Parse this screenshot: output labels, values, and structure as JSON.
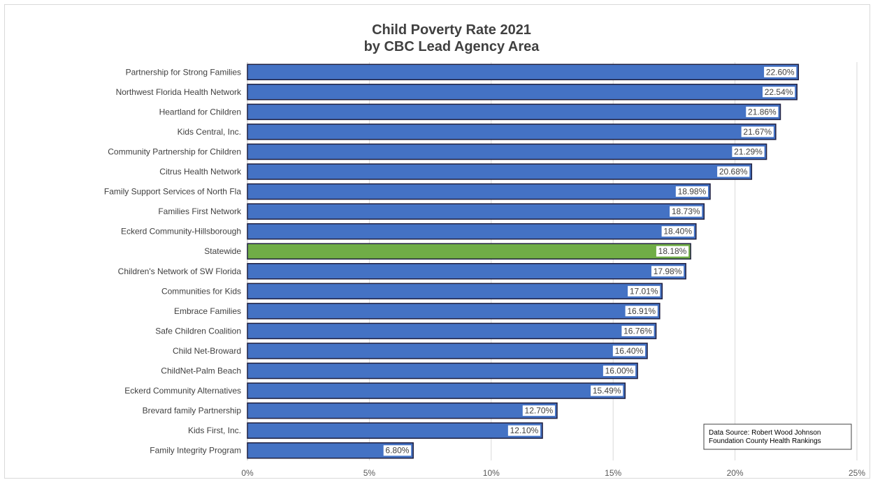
{
  "chart_data": {
    "type": "bar",
    "orientation": "horizontal",
    "title_lines": [
      "Child Poverty Rate 2021",
      "by CBC Lead Agency Area"
    ],
    "categories": [
      "Partnership for Strong Families",
      "Northwest Florida Health Network",
      "Heartland for Children",
      "Kids Central, Inc.",
      "Community Partnership for Children",
      "Citrus Health Network",
      "Family Support Services of North Fla",
      "Families First Network",
      "Eckerd Community-Hillsborough",
      "Statewide",
      "Children's Network of SW Florida",
      "Communities for Kids",
      "Embrace Families",
      "Safe Children Coalition",
      "Child Net-Broward",
      "ChildNet-Palm Beach",
      "Eckerd Community Alternatives",
      "Brevard family Partnership",
      "Kids First, Inc.",
      "Family Integrity Program"
    ],
    "values": [
      22.6,
      22.54,
      21.86,
      21.67,
      21.29,
      20.68,
      18.98,
      18.73,
      18.4,
      18.18,
      17.98,
      17.01,
      16.91,
      16.76,
      16.4,
      16.0,
      15.49,
      12.7,
      12.1,
      6.8
    ],
    "data_labels": [
      "22.60%",
      "22.54%",
      "21.86%",
      "21.67%",
      "21.29%",
      "20.68%",
      "18.98%",
      "18.73%",
      "18.40%",
      "18.18%",
      "17.98%",
      "17.01%",
      "16.91%",
      "16.76%",
      "16.40%",
      "16.00%",
      "15.49%",
      "12.70%",
      "12.10%",
      "6.80%"
    ],
    "highlight_category": "Statewide",
    "xlim": [
      0,
      25
    ],
    "xticks": [
      0,
      5,
      10,
      15,
      20,
      25
    ],
    "xtick_labels": [
      "0%",
      "5%",
      "10%",
      "15%",
      "20%",
      "25%"
    ],
    "grid": "vertical",
    "colors": {
      "bar": "#4472c4",
      "highlight": "#70ad47",
      "bar_border": "#1f1f3f",
      "gridline": "#d9d9d9",
      "title": "#404040"
    },
    "note_lines": [
      "Data Source: Robert Wood Johnson",
      "Foundation County Health Rankings"
    ],
    "note_placement": "bottom-right"
  }
}
